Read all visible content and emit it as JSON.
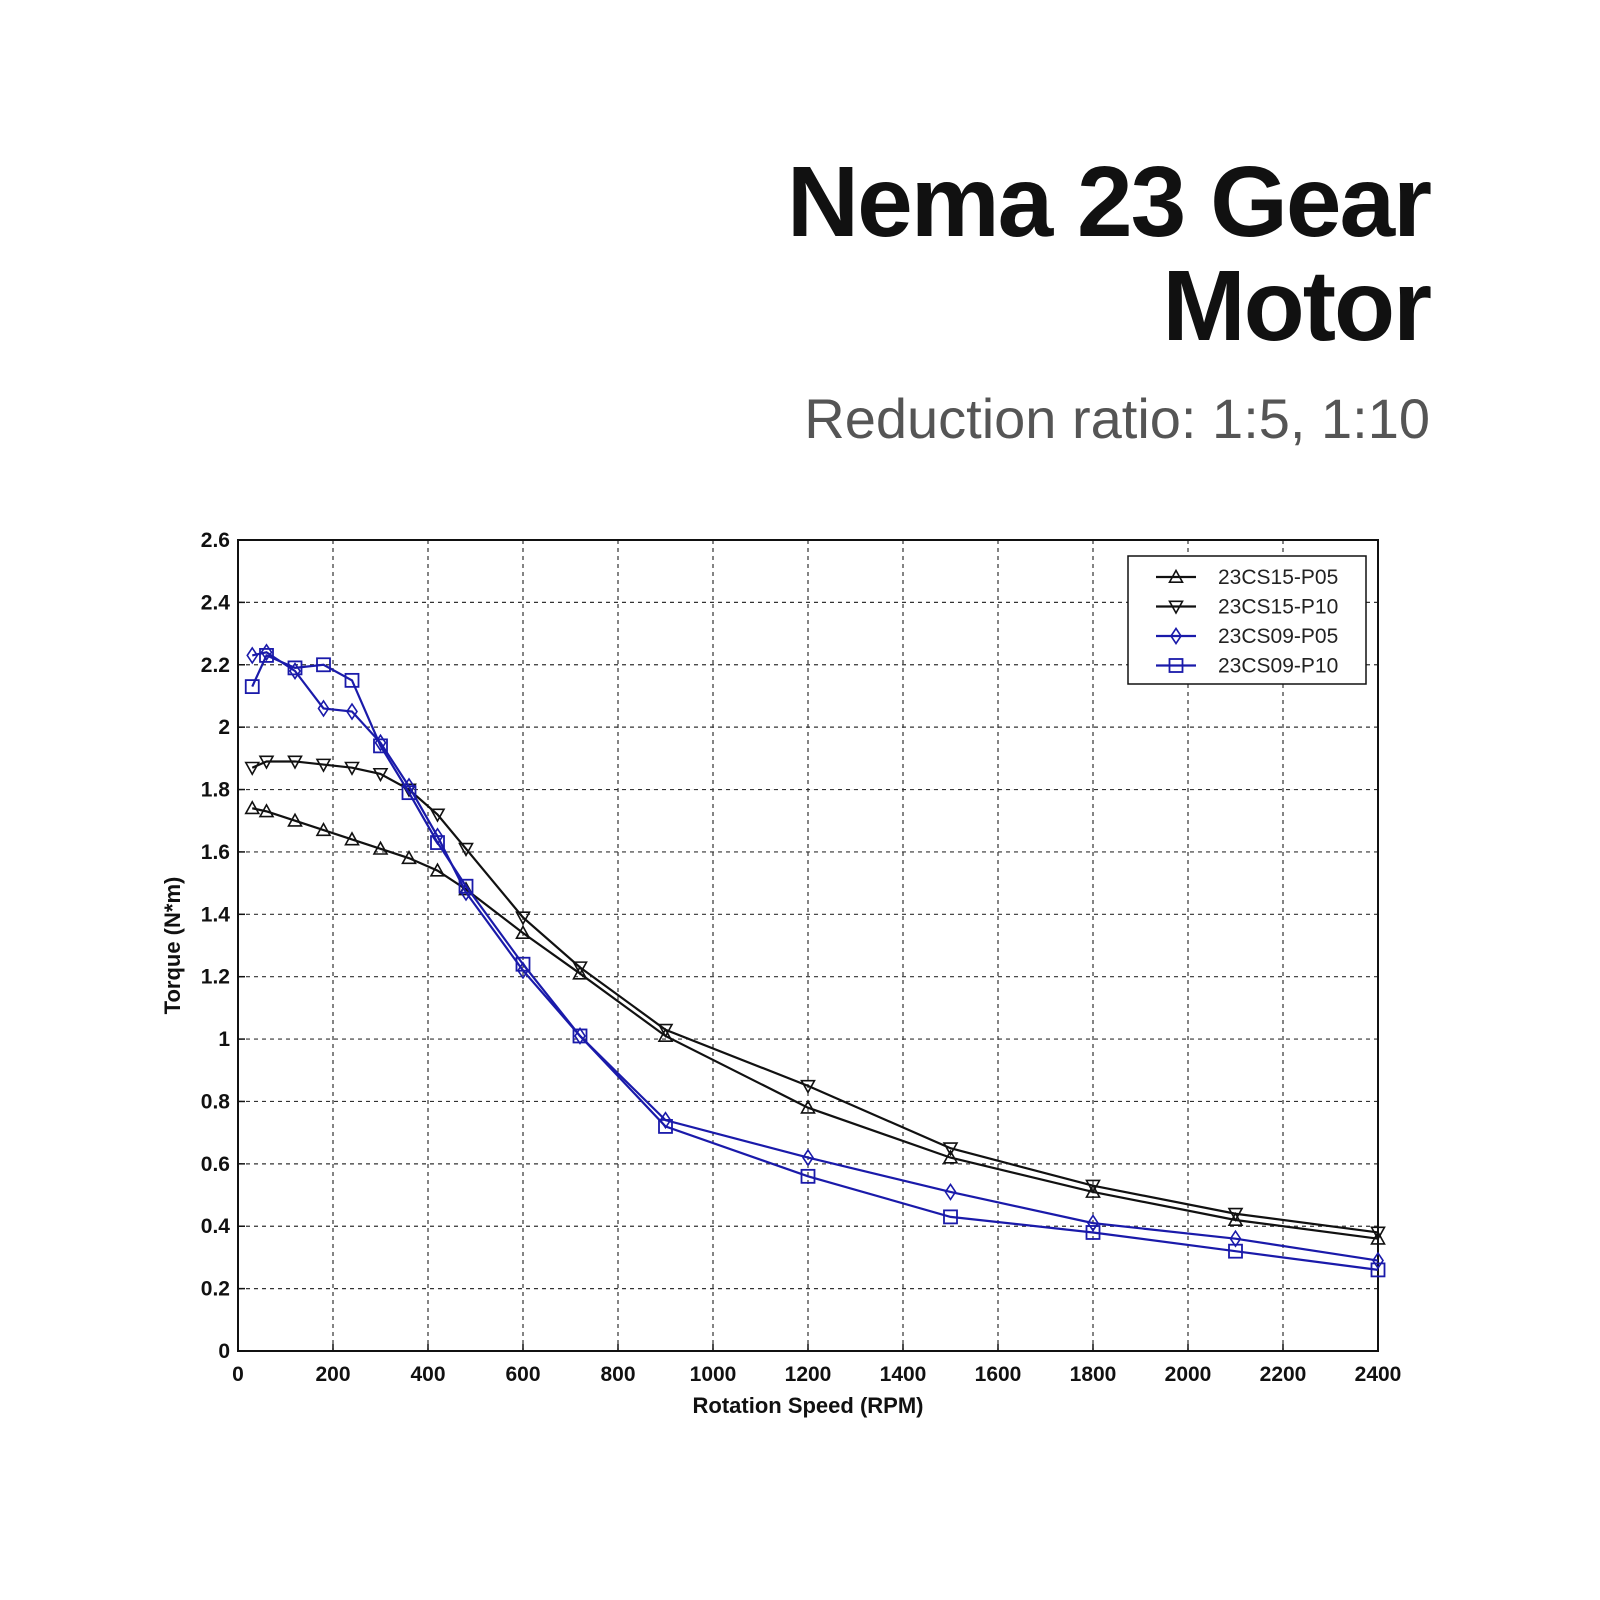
{
  "header": {
    "title_line1": "Nema 23 Gear",
    "title_line2": "Motor",
    "subtitle": "Reduction ratio: 1:5, 1:10"
  },
  "chart_data": {
    "type": "line",
    "xlabel": "Rotation Speed (RPM)",
    "ylabel": "Torque (N*m)",
    "xlim": [
      0,
      2400
    ],
    "ylim": [
      0,
      2.6
    ],
    "xticks": [
      "0",
      "200",
      "400",
      "600",
      "800",
      "1000",
      "1200",
      "1400",
      "1600",
      "1800",
      "2000",
      "2200",
      "2400"
    ],
    "yticks": [
      "0",
      "0.2",
      "0.4",
      "0.6",
      "0.8",
      "1",
      "1.2",
      "1.4",
      "1.6",
      "1.8",
      "2",
      "2.2",
      "2.4",
      "2.6"
    ],
    "grid": true,
    "legend_position": "top-right",
    "series": [
      {
        "name": "23CS15-P05",
        "color": "#111111",
        "marker": "triangle-up",
        "x": [
          30,
          60,
          120,
          180,
          240,
          300,
          360,
          420,
          480,
          600,
          720,
          900,
          1200,
          1500,
          1800,
          2100,
          2400
        ],
        "y": [
          1.74,
          1.73,
          1.7,
          1.67,
          1.64,
          1.61,
          1.58,
          1.54,
          1.48,
          1.34,
          1.21,
          1.01,
          0.78,
          0.62,
          0.51,
          0.42,
          0.36
        ]
      },
      {
        "name": "23CS15-P10",
        "color": "#111111",
        "marker": "triangle-down",
        "x": [
          30,
          60,
          120,
          180,
          240,
          300,
          360,
          420,
          480,
          600,
          720,
          900,
          1200,
          1500,
          1800,
          2100,
          2400
        ],
        "y": [
          1.87,
          1.89,
          1.89,
          1.88,
          1.87,
          1.85,
          1.8,
          1.72,
          1.61,
          1.39,
          1.23,
          1.03,
          0.85,
          0.65,
          0.53,
          0.44,
          0.38
        ]
      },
      {
        "name": "23CS09-P05",
        "color": "#1a1aaa",
        "marker": "diamond",
        "x": [
          30,
          60,
          120,
          180,
          240,
          300,
          360,
          420,
          480,
          600,
          720,
          900,
          1200,
          1500,
          1800,
          2100,
          2400
        ],
        "y": [
          2.23,
          2.24,
          2.18,
          2.06,
          2.05,
          1.95,
          1.81,
          1.65,
          1.47,
          1.22,
          1.01,
          0.74,
          0.62,
          0.51,
          0.41,
          0.36,
          0.29
        ]
      },
      {
        "name": "23CS09-P10",
        "color": "#1a1aaa",
        "marker": "square",
        "x": [
          30,
          60,
          120,
          180,
          240,
          300,
          360,
          420,
          480,
          600,
          720,
          900,
          1200,
          1500,
          1800,
          2100,
          2400
        ],
        "y": [
          2.13,
          2.23,
          2.19,
          2.2,
          2.15,
          1.94,
          1.79,
          1.63,
          1.49,
          1.24,
          1.01,
          0.72,
          0.56,
          0.43,
          0.38,
          0.32,
          0.26
        ]
      }
    ]
  }
}
